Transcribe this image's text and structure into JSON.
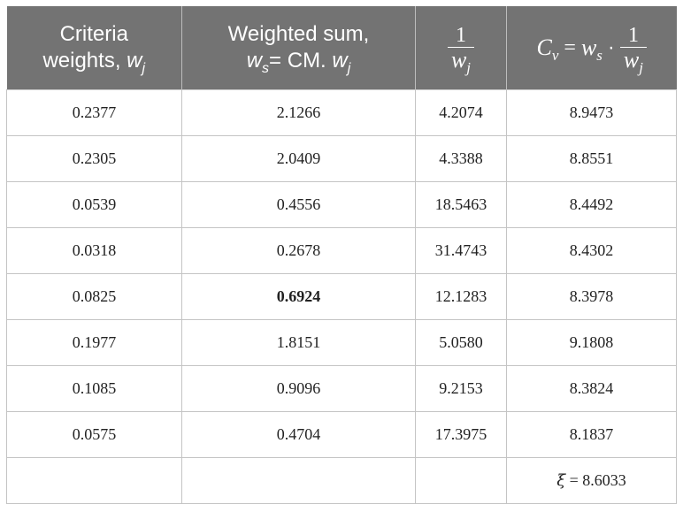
{
  "headers": {
    "col1": {
      "line1": "Criteria",
      "line2": "weights, ",
      "var": "w",
      "sub": "j"
    },
    "col2": {
      "line1": "Weighted sum,",
      "var1": "w",
      "sub1": "s",
      "mid": "= CM. ",
      "var2": "w",
      "sub2": "j"
    },
    "col3": {
      "num": "1",
      "den_var": "w",
      "den_sub": "j"
    },
    "col4": {
      "lhs_var": "C",
      "lhs_sub": "v",
      "eq": "=",
      "rhs_var": "w",
      "rhs_sub": "s",
      "dot": "·",
      "num": "1",
      "den_var": "w",
      "den_sub": "j"
    }
  },
  "rows": [
    {
      "weight": "0.2377",
      "wsum": "2.1266",
      "inv": "4.2074",
      "cv": "8.9473"
    },
    {
      "weight": "0.2305",
      "wsum": "2.0409",
      "inv": "4.3388",
      "cv": "8.8551"
    },
    {
      "weight": "0.0539",
      "wsum": "0.4556",
      "inv": "18.5463",
      "cv": "8.4492"
    },
    {
      "weight": "0.0318",
      "wsum": "0.2678",
      "inv": "31.4743",
      "cv": "8.4302"
    },
    {
      "weight": "0.0825",
      "wsum": "0.6924",
      "inv": "12.1283",
      "cv": "8.3978"
    },
    {
      "weight": "0.1977",
      "wsum": "1.8151",
      "inv": "5.0580",
      "cv": "9.1808"
    },
    {
      "weight": "0.1085",
      "wsum": "0.9096",
      "inv": "9.2153",
      "cv": "8.3824"
    },
    {
      "weight": "0.0575",
      "wsum": "0.4704",
      "inv": "17.3975",
      "cv": "8.1837"
    }
  ],
  "footer": {
    "symbol": "ξ",
    "text": " = 8.6033"
  }
}
